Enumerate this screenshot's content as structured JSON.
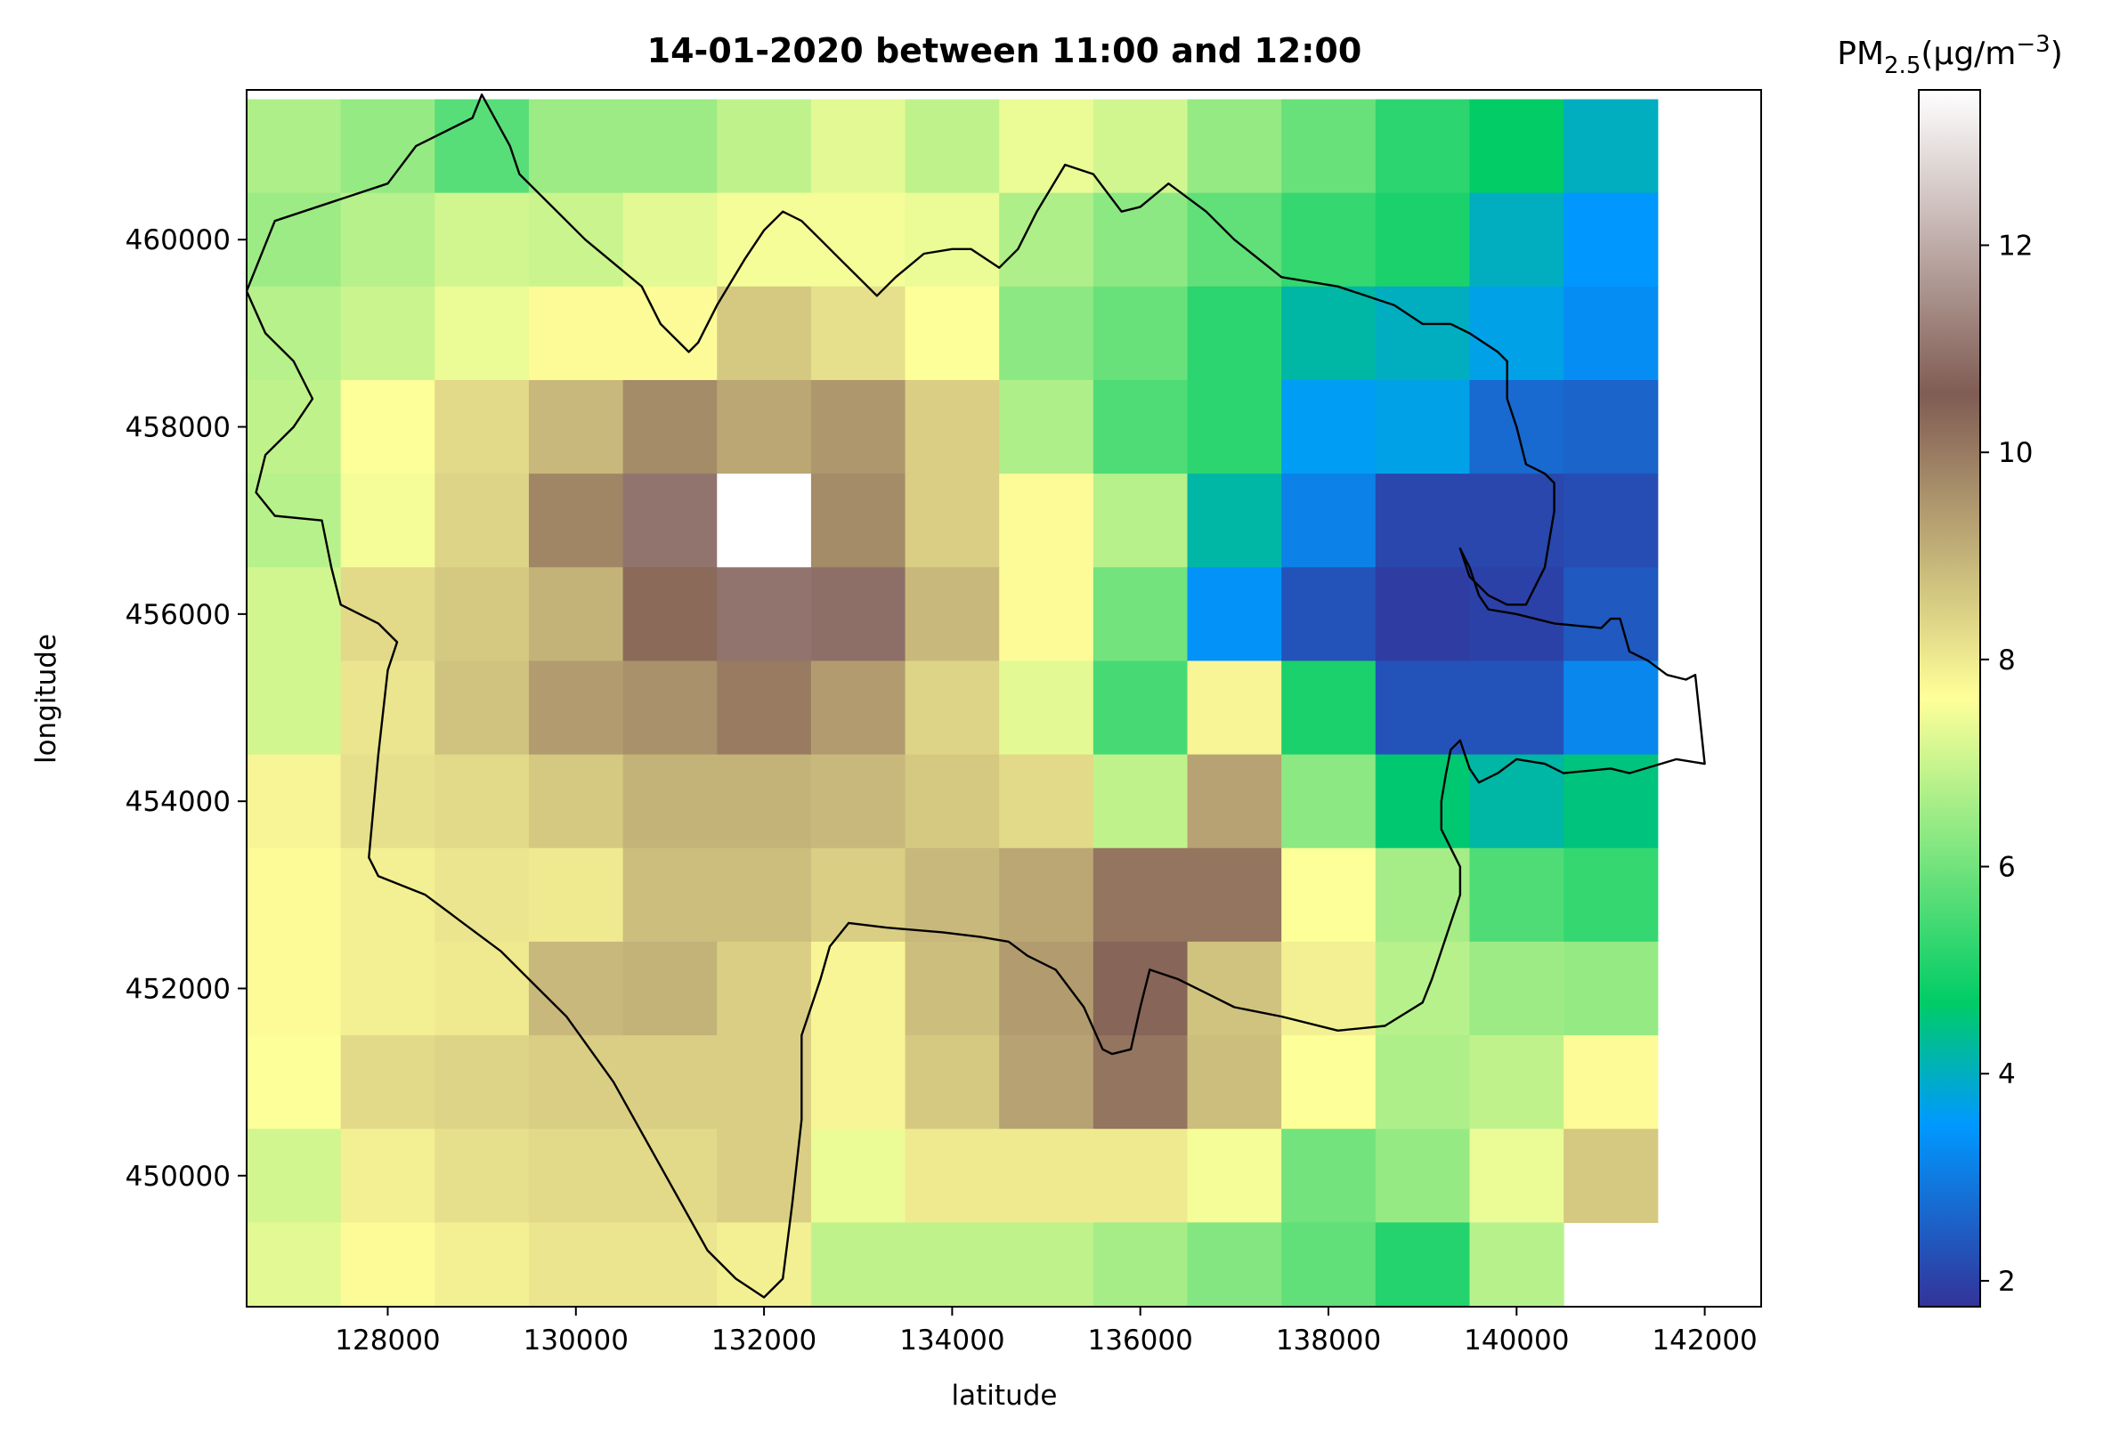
{
  "chart_data": {
    "type": "heatmap",
    "title": "14-01-2020 between 11:00 and 12:00",
    "xlabel": "latitude",
    "ylabel": "longitude",
    "xlim": [
      126500,
      142600
    ],
    "ylim": [
      448600,
      461600
    ],
    "xticks": [
      128000,
      130000,
      132000,
      134000,
      136000,
      138000,
      140000,
      142000
    ],
    "yticks": [
      450000,
      452000,
      454000,
      456000,
      458000,
      460000
    ],
    "cell_size": 1000,
    "x_start": 126500,
    "y_top": 461500,
    "colorbar": {
      "label_main": "PM",
      "label_sub": "2.5",
      "label_unit_pre": "(µg/m",
      "label_sup": "−3",
      "label_unit_post": ")",
      "min": 1.75,
      "max": 13.5,
      "ticks": [
        2,
        4,
        6,
        8,
        10,
        12
      ],
      "colormap": "terrain"
    },
    "grid": [
      [
        6.7,
        6.4,
        5.7,
        6.5,
        6.5,
        6.9,
        7.3,
        6.9,
        7.4,
        7.1,
        6.4,
        5.9,
        5.2,
        4.7,
        4.0,
        null
      ],
      [
        6.5,
        6.8,
        7.1,
        7.0,
        7.3,
        7.5,
        7.5,
        7.4,
        6.7,
        6.3,
        5.8,
        5.3,
        5.0,
        4.0,
        3.5,
        null
      ],
      [
        6.8,
        7.0,
        7.4,
        7.7,
        7.7,
        8.6,
        8.2,
        7.6,
        6.3,
        5.9,
        5.2,
        4.2,
        4.0,
        3.7,
        3.3,
        null
      ],
      [
        6.9,
        7.6,
        8.3,
        8.9,
        9.7,
        9.2,
        9.5,
        8.5,
        6.7,
        5.6,
        5.2,
        3.6,
        3.7,
        2.7,
        2.6,
        null
      ],
      [
        6.8,
        7.5,
        8.4,
        9.8,
        11.0,
        13.5,
        9.7,
        8.5,
        7.7,
        6.8,
        4.2,
        3.1,
        2.1,
        2.1,
        2.2,
        null
      ],
      [
        7.1,
        8.3,
        8.6,
        9.0,
        10.3,
        11.0,
        10.9,
        8.9,
        7.7,
        6.0,
        3.4,
        2.3,
        1.9,
        2.0,
        2.4,
        null
      ],
      [
        7.1,
        8.1,
        8.7,
        9.4,
        9.6,
        10.0,
        9.4,
        8.4,
        7.3,
        5.5,
        7.8,
        5.0,
        2.3,
        2.3,
        3.2,
        null
      ],
      [
        7.8,
        8.2,
        8.3,
        8.6,
        9.0,
        9.0,
        8.9,
        8.6,
        8.3,
        6.9,
        9.3,
        6.3,
        4.6,
        4.2,
        4.5,
        null
      ],
      [
        7.7,
        7.9,
        8.1,
        8.0,
        8.8,
        8.8,
        8.5,
        8.9,
        9.2,
        10.1,
        10.1,
        7.6,
        6.6,
        5.6,
        5.3,
        null
      ],
      [
        7.7,
        7.9,
        8.0,
        8.9,
        9.0,
        8.5,
        7.8,
        8.8,
        9.4,
        10.4,
        8.7,
        7.9,
        6.8,
        6.5,
        6.4,
        null
      ],
      [
        7.6,
        8.3,
        8.4,
        8.5,
        8.5,
        8.5,
        7.8,
        8.6,
        9.3,
        10.1,
        8.8,
        7.6,
        6.7,
        6.9,
        7.7,
        null
      ],
      [
        7.1,
        7.9,
        8.2,
        8.3,
        8.3,
        8.5,
        7.4,
        8.0,
        8.0,
        8.0,
        7.5,
        6.0,
        6.4,
        7.4,
        8.6,
        null
      ],
      [
        7.3,
        7.7,
        7.9,
        8.1,
        8.1,
        7.9,
        6.9,
        6.9,
        6.9,
        6.6,
        6.2,
        5.8,
        5.1,
        6.8,
        null,
        null
      ]
    ],
    "boundary": [
      [
        126500,
        459450
      ],
      [
        126800,
        460200
      ],
      [
        127400,
        460400
      ],
      [
        128000,
        460600
      ],
      [
        128300,
        461000
      ],
      [
        128900,
        461300
      ],
      [
        129000,
        461550
      ],
      [
        129300,
        461000
      ],
      [
        129400,
        460700
      ],
      [
        130100,
        460000
      ],
      [
        130700,
        459500
      ],
      [
        130900,
        459100
      ],
      [
        131200,
        458800
      ],
      [
        131300,
        458900
      ],
      [
        131500,
        459300
      ],
      [
        131800,
        459800
      ],
      [
        132000,
        460100
      ],
      [
        132200,
        460300
      ],
      [
        132400,
        460200
      ],
      [
        132600,
        460000
      ],
      [
        132800,
        459800
      ],
      [
        133200,
        459400
      ],
      [
        133400,
        459600
      ],
      [
        133700,
        459850
      ],
      [
        134000,
        459900
      ],
      [
        134200,
        459900
      ],
      [
        134500,
        459700
      ],
      [
        134700,
        459900
      ],
      [
        134900,
        460300
      ],
      [
        135200,
        460800
      ],
      [
        135500,
        460700
      ],
      [
        135800,
        460300
      ],
      [
        136000,
        460350
      ],
      [
        136300,
        460600
      ],
      [
        136700,
        460300
      ],
      [
        137000,
        460000
      ],
      [
        137500,
        459600
      ],
      [
        138100,
        459500
      ],
      [
        138700,
        459300
      ],
      [
        139000,
        459100
      ],
      [
        139300,
        459100
      ],
      [
        139500,
        459000
      ],
      [
        139800,
        458800
      ],
      [
        139900,
        458700
      ],
      [
        139900,
        458300
      ],
      [
        140000,
        458000
      ],
      [
        140100,
        457600
      ],
      [
        140300,
        457500
      ],
      [
        140400,
        457400
      ],
      [
        140400,
        457100
      ],
      [
        140300,
        456500
      ],
      [
        140100,
        456100
      ],
      [
        139900,
        456100
      ],
      [
        139700,
        456200
      ],
      [
        139500,
        456400
      ],
      [
        139400,
        456700
      ],
      [
        139500,
        456500
      ],
      [
        139600,
        456200
      ],
      [
        139700,
        456050
      ],
      [
        140000,
        456000
      ],
      [
        140400,
        455900
      ],
      [
        140900,
        455850
      ],
      [
        141000,
        455950
      ],
      [
        141100,
        455950
      ],
      [
        141200,
        455600
      ],
      [
        141400,
        455500
      ],
      [
        141600,
        455350
      ],
      [
        141800,
        455300
      ],
      [
        141900,
        455350
      ],
      [
        142000,
        454400
      ],
      [
        141700,
        454450
      ],
      [
        141200,
        454300
      ],
      [
        141000,
        454350
      ],
      [
        140500,
        454300
      ],
      [
        140300,
        454400
      ],
      [
        140000,
        454450
      ],
      [
        139800,
        454300
      ],
      [
        139600,
        454200
      ],
      [
        139500,
        454350
      ],
      [
        139400,
        454650
      ],
      [
        139300,
        454550
      ],
      [
        139250,
        454300
      ],
      [
        139200,
        454000
      ],
      [
        139200,
        453700
      ],
      [
        139300,
        453500
      ],
      [
        139400,
        453300
      ],
      [
        139400,
        453000
      ],
      [
        139300,
        452700
      ],
      [
        139200,
        452400
      ],
      [
        139100,
        452100
      ],
      [
        139000,
        451850
      ],
      [
        138600,
        451600
      ],
      [
        138100,
        451550
      ],
      [
        137500,
        451700
      ],
      [
        137000,
        451800
      ],
      [
        136700,
        451950
      ],
      [
        136400,
        452100
      ],
      [
        136100,
        452200
      ],
      [
        136000,
        451800
      ],
      [
        135900,
        451350
      ],
      [
        135700,
        451300
      ],
      [
        135600,
        451350
      ],
      [
        135400,
        451800
      ],
      [
        135100,
        452200
      ],
      [
        134800,
        452350
      ],
      [
        134600,
        452500
      ],
      [
        134300,
        452550
      ],
      [
        133900,
        452600
      ],
      [
        133300,
        452650
      ],
      [
        132900,
        452700
      ],
      [
        132700,
        452450
      ],
      [
        132600,
        452100
      ],
      [
        132400,
        451500
      ],
      [
        132400,
        450600
      ],
      [
        132300,
        449700
      ],
      [
        132200,
        448900
      ],
      [
        132000,
        448700
      ],
      [
        131700,
        448900
      ],
      [
        131400,
        449200
      ],
      [
        130900,
        450100
      ],
      [
        130400,
        451000
      ],
      [
        129900,
        451700
      ],
      [
        129600,
        452000
      ],
      [
        129200,
        452400
      ],
      [
        128800,
        452700
      ],
      [
        128400,
        453000
      ],
      [
        127900,
        453200
      ],
      [
        127800,
        453400
      ],
      [
        127900,
        454500
      ],
      [
        128000,
        455400
      ],
      [
        128100,
        455700
      ],
      [
        127900,
        455900
      ],
      [
        127500,
        456100
      ],
      [
        127400,
        456500
      ],
      [
        127300,
        457000
      ],
      [
        126800,
        457050
      ],
      [
        126600,
        457300
      ],
      [
        126700,
        457700
      ],
      [
        127000,
        458000
      ],
      [
        127200,
        458300
      ],
      [
        127100,
        458500
      ],
      [
        127000,
        458700
      ],
      [
        126700,
        459000
      ],
      [
        126500,
        459450
      ]
    ]
  }
}
